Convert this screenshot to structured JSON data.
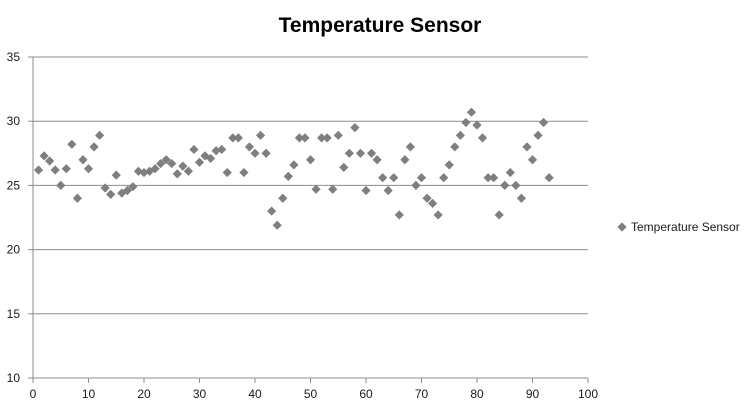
{
  "chart_data": {
    "type": "scatter",
    "title": "Temperature Sensor",
    "xlabel": "",
    "ylabel": "",
    "xlim": [
      0,
      100
    ],
    "ylim": [
      10,
      35
    ],
    "x_ticks": [
      0,
      10,
      20,
      30,
      40,
      50,
      60,
      70,
      80,
      90,
      100
    ],
    "y_ticks": [
      10,
      15,
      20,
      25,
      30,
      35
    ],
    "grid": "horizontal",
    "legend_position": "right",
    "series": [
      {
        "name": "Temperature Sensor",
        "color": "#7f7f7f",
        "marker": "diamond",
        "x": [
          1,
          2,
          3,
          4,
          5,
          6,
          7,
          8,
          9,
          10,
          11,
          12,
          13,
          14,
          15,
          16,
          17,
          18,
          19,
          20,
          21,
          22,
          23,
          24,
          25,
          26,
          27,
          28,
          29,
          30,
          31,
          32,
          33,
          34,
          35,
          36,
          37,
          38,
          39,
          40,
          41,
          42,
          43,
          44,
          45,
          46,
          47,
          48,
          49,
          50,
          51,
          52,
          53,
          54,
          55,
          56,
          57,
          58,
          59,
          60,
          61,
          62,
          63,
          64,
          65,
          66,
          67,
          68,
          69,
          70,
          71,
          72,
          73,
          74,
          75,
          76,
          77,
          78,
          79,
          80,
          81,
          82,
          83,
          84,
          85,
          86,
          87,
          88,
          89,
          90,
          91,
          92,
          93
        ],
        "y": [
          26.2,
          27.3,
          26.9,
          26.2,
          25.0,
          26.3,
          28.2,
          24.0,
          27.0,
          26.3,
          28.0,
          28.9,
          24.8,
          24.3,
          25.8,
          24.4,
          24.6,
          24.9,
          26.1,
          26.0,
          26.1,
          26.3,
          26.7,
          27.0,
          26.7,
          25.9,
          26.5,
          26.1,
          27.8,
          26.8,
          27.3,
          27.1,
          27.7,
          27.8,
          26.0,
          28.7,
          28.7,
          26.0,
          28.0,
          27.5,
          28.9,
          27.5,
          23.0,
          21.9,
          24.0,
          25.7,
          26.6,
          28.7,
          28.7,
          27.0,
          24.7,
          28.7,
          28.7,
          24.7,
          28.9,
          26.4,
          27.5,
          29.5,
          27.5,
          24.6,
          27.5,
          27.0,
          25.6,
          24.6,
          25.6,
          22.7,
          27.0,
          28.0,
          25.0,
          25.6,
          24.0,
          23.6,
          22.7,
          25.6,
          26.6,
          28.0,
          28.9,
          29.9,
          30.7,
          29.7,
          28.7,
          25.6,
          25.6,
          22.7,
          25.0,
          26.0,
          25.0,
          24.0,
          28.0,
          27.0,
          28.9,
          29.9,
          25.6
        ]
      }
    ]
  }
}
